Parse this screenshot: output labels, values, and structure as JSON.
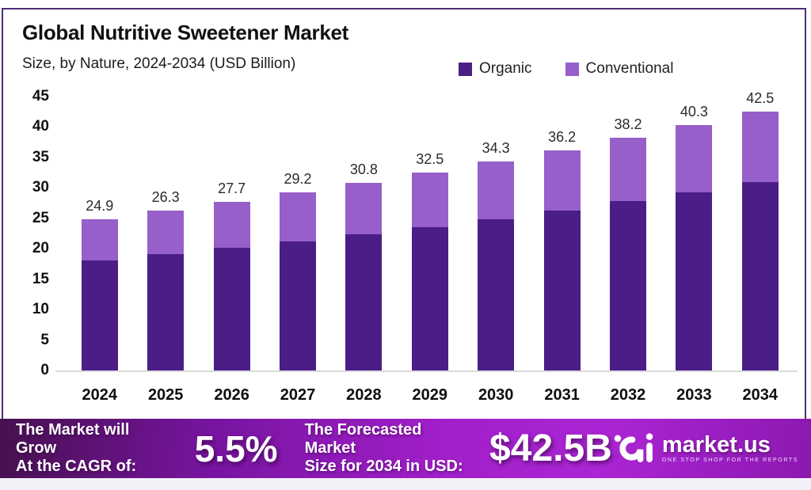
{
  "header": {
    "title": "Global Nutritive Sweetener Market",
    "subtitle": "Size, by Nature, 2024-2034 (USD Billion)"
  },
  "legend": [
    {
      "label": "Organic",
      "color": "#4b1e86"
    },
    {
      "label": "Conventional",
      "color": "#975fc9"
    }
  ],
  "chart_data": {
    "type": "bar",
    "stacked": true,
    "title": "Global Nutritive Sweetener Market Size, by Nature, 2024-2034 (USD Billion)",
    "categories": [
      "2024",
      "2025",
      "2026",
      "2027",
      "2028",
      "2029",
      "2030",
      "2031",
      "2032",
      "2033",
      "2034"
    ],
    "totals": [
      24.9,
      26.3,
      27.7,
      29.2,
      30.8,
      32.5,
      34.3,
      36.2,
      38.2,
      40.3,
      42.5
    ],
    "series": [
      {
        "name": "Organic",
        "color": "#4a1d87",
        "values": [
          18.1,
          19.1,
          20.1,
          21.2,
          22.4,
          23.6,
          24.9,
          26.3,
          27.8,
          29.3,
          30.9
        ]
      },
      {
        "name": "Conventional",
        "color": "#975fc9",
        "values": [
          6.8,
          7.2,
          7.6,
          8.0,
          8.4,
          8.9,
          9.4,
          9.9,
          10.4,
          11.0,
          11.6
        ]
      }
    ],
    "xlabel": "",
    "ylabel": "",
    "ylim": [
      0,
      45
    ],
    "yticks": [
      0,
      5,
      10,
      15,
      20,
      25,
      30,
      35,
      40,
      45
    ],
    "grid": false,
    "legend_position": "top-right",
    "bar_value_labels": [
      "24.9",
      "26.3",
      "27.7",
      "29.2",
      "30.8",
      "32.5",
      "34.3",
      "36.2",
      "38.2",
      "40.3",
      "42.5"
    ]
  },
  "banner": {
    "cagr_line1": "The Market will Grow",
    "cagr_line2": "At the CAGR of:",
    "cagr_value": "5.5%",
    "forecast_line1": "The Forecasted Market",
    "forecast_line2": "Size for 2034 in USD:",
    "forecast_value": "$42.5B",
    "logo_text": "market.us",
    "logo_tagline": "ONE STOP SHOP FOR THE REPORTS"
  },
  "colors": {
    "card_border": "#4f2d73",
    "organic": "#4a1d87",
    "conventional": "#975fc9",
    "axis_line": "#d9d9d9",
    "banner_gradient_left": "#47104f",
    "banner_gradient_mid": "#a21fca",
    "banner_gradient_right": "#8c18b0"
  }
}
